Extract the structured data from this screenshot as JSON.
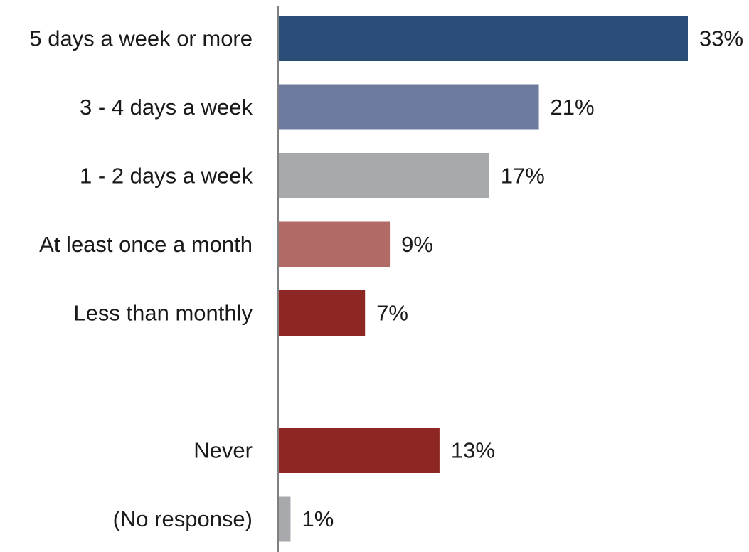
{
  "chart_data": {
    "type": "bar",
    "orientation": "horizontal",
    "title": "",
    "xlabel": "",
    "ylabel": "",
    "grid": false,
    "legend": "none",
    "xlim": [
      0,
      33
    ],
    "bars": [
      {
        "category": "5 days a week or more",
        "value": 33,
        "label": "33%",
        "color": "#2b4e79"
      },
      {
        "category": "3 - 4 days a week",
        "value": 21,
        "label": "21%",
        "color": "#6c7b9e"
      },
      {
        "category": "1 - 2 days a week",
        "value": 17,
        "label": "17%",
        "color": "#a8a9ad"
      },
      {
        "category": "At least once a month",
        "value": 9,
        "label": "9%",
        "color": "#b16a66"
      },
      {
        "category": "Less than monthly",
        "value": 7,
        "label": "7%",
        "color": "#8e2624"
      },
      {
        "category": "Never",
        "value": 13,
        "label": "13%",
        "color": "#8e2624"
      },
      {
        "category": "(No response)",
        "value": 1,
        "label": "1%",
        "color": "#a8a9ad"
      }
    ],
    "groups": [
      [
        0,
        1,
        2,
        3,
        4
      ],
      [
        5,
        6
      ]
    ],
    "axis_color": "#808080"
  }
}
